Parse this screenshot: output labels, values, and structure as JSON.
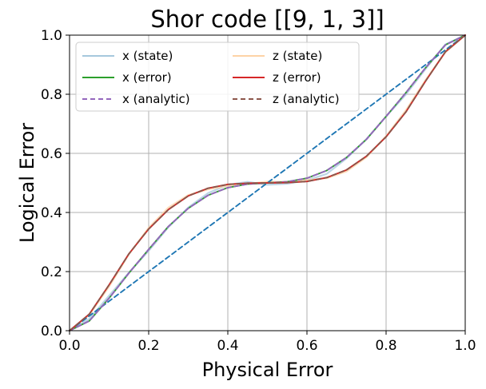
{
  "chart_data": {
    "type": "line",
    "title": "Shor code [[9, 1, 3]]",
    "xlabel": "Physical Error",
    "ylabel": "Logical Error",
    "xlim": [
      0.0,
      1.0
    ],
    "ylim": [
      0.0,
      1.0
    ],
    "xticks": [
      "0.0",
      "0.2",
      "0.4",
      "0.6",
      "0.8",
      "1.0"
    ],
    "yticks": [
      "0.0",
      "0.2",
      "0.4",
      "0.6",
      "0.8",
      "1.0"
    ],
    "grid": true,
    "legend": {
      "position": "upper-left",
      "columns": 2
    },
    "x": [
      0.0,
      0.05,
      0.1,
      0.15,
      0.2,
      0.25,
      0.3,
      0.35,
      0.4,
      0.45,
      0.5,
      0.55,
      0.6,
      0.65,
      0.7,
      0.75,
      0.8,
      0.85,
      0.9,
      0.95,
      1.0
    ],
    "series": [
      {
        "name": "x (state)",
        "color": "#a6c8dd",
        "style": "solid",
        "values": [
          0.0,
          0.035,
          0.113,
          0.196,
          0.275,
          0.356,
          0.418,
          0.461,
          0.488,
          0.502,
          0.498,
          0.503,
          0.511,
          0.527,
          0.577,
          0.645,
          0.728,
          0.805,
          0.889,
          0.966,
          1.0
        ]
      },
      {
        "name": "x (error)",
        "color": "#2ca02c",
        "style": "solid",
        "values": [
          0.0,
          0.033,
          0.11,
          0.195,
          0.275,
          0.353,
          0.414,
          0.458,
          0.484,
          0.496,
          0.5,
          0.504,
          0.516,
          0.542,
          0.586,
          0.647,
          0.725,
          0.805,
          0.89,
          0.967,
          1.0
        ]
      },
      {
        "name": "x (analytic)",
        "color": "#9467bd",
        "style": "dashed",
        "values": [
          0.0,
          0.033,
          0.11,
          0.195,
          0.275,
          0.353,
          0.414,
          0.458,
          0.484,
          0.496,
          0.5,
          0.504,
          0.516,
          0.542,
          0.586,
          0.647,
          0.725,
          0.805,
          0.89,
          0.967,
          1.0
        ]
      },
      {
        "name": "z (state)",
        "color": "#fdd3a6",
        "style": "solid",
        "values": [
          0.0,
          0.058,
          0.155,
          0.26,
          0.344,
          0.411,
          0.457,
          0.482,
          0.496,
          0.499,
          0.501,
          0.497,
          0.507,
          0.519,
          0.545,
          0.59,
          0.656,
          0.74,
          0.845,
          0.944,
          1.0
        ]
      },
      {
        "name": "z (error)",
        "color": "#d62728",
        "style": "solid",
        "values": [
          0.0,
          0.056,
          0.155,
          0.26,
          0.344,
          0.41,
          0.456,
          0.482,
          0.495,
          0.499,
          0.5,
          0.501,
          0.505,
          0.518,
          0.544,
          0.59,
          0.656,
          0.74,
          0.845,
          0.944,
          1.0
        ]
      },
      {
        "name": "z (analytic)",
        "color": "#8c564b",
        "style": "dashed",
        "values": [
          0.0,
          0.056,
          0.155,
          0.26,
          0.344,
          0.41,
          0.456,
          0.482,
          0.495,
          0.499,
          0.5,
          0.501,
          0.505,
          0.518,
          0.544,
          0.59,
          0.656,
          0.74,
          0.845,
          0.944,
          1.0
        ]
      },
      {
        "name": "",
        "color": "#1f77b4",
        "style": "dashed",
        "values": [
          0.0,
          0.05,
          0.1,
          0.15,
          0.2,
          0.25,
          0.3,
          0.35,
          0.4,
          0.45,
          0.5,
          0.55,
          0.6,
          0.65,
          0.7,
          0.75,
          0.8,
          0.85,
          0.9,
          0.95,
          1.0
        ]
      }
    ]
  }
}
